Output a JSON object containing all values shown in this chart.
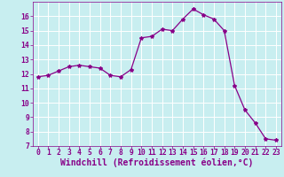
{
  "x": [
    0,
    1,
    2,
    3,
    4,
    5,
    6,
    7,
    8,
    9,
    10,
    11,
    12,
    13,
    14,
    15,
    16,
    17,
    18,
    19,
    20,
    21,
    22,
    23
  ],
  "y": [
    11.8,
    11.9,
    12.2,
    12.5,
    12.6,
    12.5,
    12.4,
    11.9,
    11.8,
    12.3,
    14.5,
    14.6,
    15.1,
    15.0,
    15.8,
    16.5,
    16.1,
    15.8,
    15.0,
    11.2,
    9.5,
    8.6,
    7.5,
    7.4
  ],
  "line_color": "#880088",
  "marker": "*",
  "marker_size": 3,
  "bg_color": "#c8eef0",
  "grid_color": "#ffffff",
  "xlabel": "Windchill (Refroidissement éolien,°C)",
  "ylim": [
    7,
    17
  ],
  "xlim": [
    -0.5,
    23.5
  ],
  "yticks": [
    7,
    8,
    9,
    10,
    11,
    12,
    13,
    14,
    15,
    16
  ],
  "xticks": [
    0,
    1,
    2,
    3,
    4,
    5,
    6,
    7,
    8,
    9,
    10,
    11,
    12,
    13,
    14,
    15,
    16,
    17,
    18,
    19,
    20,
    21,
    22,
    23
  ],
  "tick_label_color": "#880088",
  "axis_label_color": "#880088",
  "tick_fontsize": 5.8,
  "xlabel_fontsize": 7.0
}
